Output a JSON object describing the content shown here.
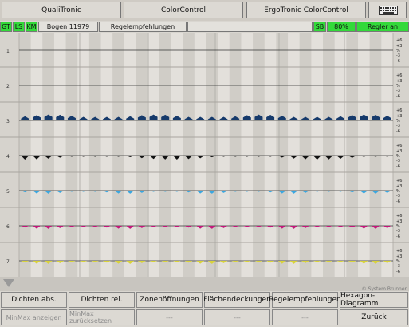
{
  "topbar": {
    "buttons": [
      "QualiTronic",
      "ColorControl",
      "ErgoTronic ColorControl"
    ],
    "keyboard_icon": "keyboard-icon"
  },
  "status": {
    "gt": "GT",
    "ls": "LS",
    "km": "KM",
    "job": "Bogen 11979",
    "mode": "Regelempfehlungen",
    "sb": "SB",
    "percent": "80%",
    "regler": "Regler an"
  },
  "rows": [
    "1",
    "2",
    "3",
    "4",
    "5",
    "6",
    "7"
  ],
  "scale": [
    "+6",
    "+3",
    "%",
    "-3",
    "-6"
  ],
  "colors": {
    "cyan": "#3aa7e0",
    "magenta": "#c2187a",
    "yellow": "#e6e03c",
    "black": "#111111",
    "blue": "#163a6b",
    "green": "#33d93a"
  },
  "copyright": "© System Brunner",
  "bottom": {
    "row1": [
      "Dichten abs.",
      "Dichten rel.",
      "Zonenöffnungen",
      "Flächendeckungen",
      "Regelempfehlungen",
      "Hexagon-Diagramm"
    ],
    "row2": [
      "MinMax anzeigen",
      "MinMax zurücksetzen",
      "---",
      "---",
      "---",
      "Zurück"
    ]
  }
}
